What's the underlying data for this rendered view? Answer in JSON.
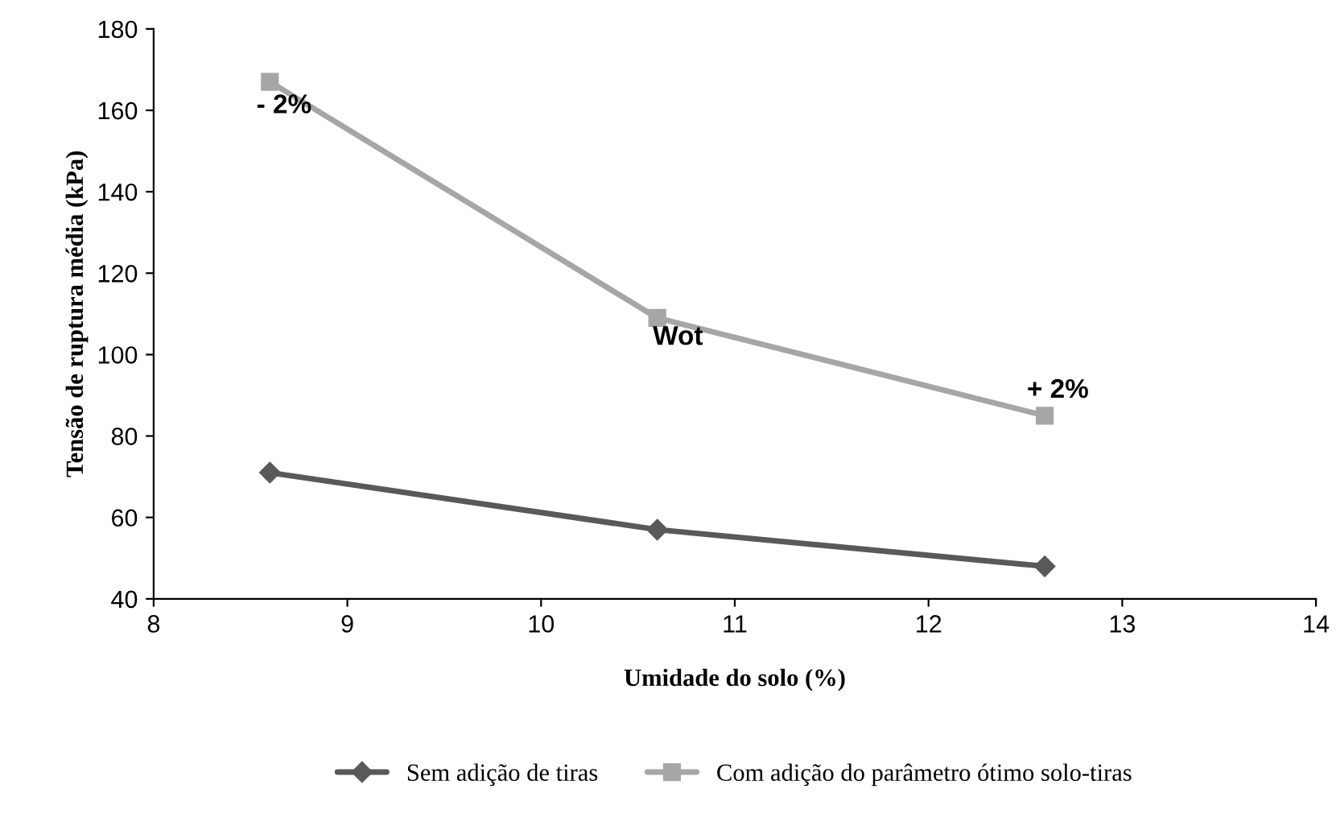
{
  "chart_data": {
    "type": "line",
    "xlabel": "Umidade do solo (%)",
    "ylabel": "Tensão de ruptura média (kPa)",
    "x": [
      8.6,
      10.6,
      12.6
    ],
    "series": [
      {
        "name": "Sem adição de tiras",
        "color": "#595959",
        "marker": "diamond",
        "values": [
          71,
          57,
          48
        ]
      },
      {
        "name": "Com adição do parâmetro ótimo solo-tiras",
        "color": "#a6a6a6",
        "marker": "square",
        "values": [
          167,
          109,
          85
        ]
      }
    ],
    "xlim": [
      8,
      14
    ],
    "xticks": [
      8,
      9,
      10,
      11,
      12,
      13,
      14
    ],
    "ylim": [
      40,
      180
    ],
    "yticks": [
      40,
      60,
      80,
      100,
      120,
      140,
      160,
      180
    ],
    "grid": false,
    "legend": "bottom",
    "line_style": "solid",
    "annotations": [
      {
        "text": "- 2%",
        "x": 8.6,
        "y": 167
      },
      {
        "text": "Wot",
        "x": 10.6,
        "y": 109
      },
      {
        "text": "+ 2%",
        "x": 12.6,
        "y": 85
      }
    ]
  }
}
